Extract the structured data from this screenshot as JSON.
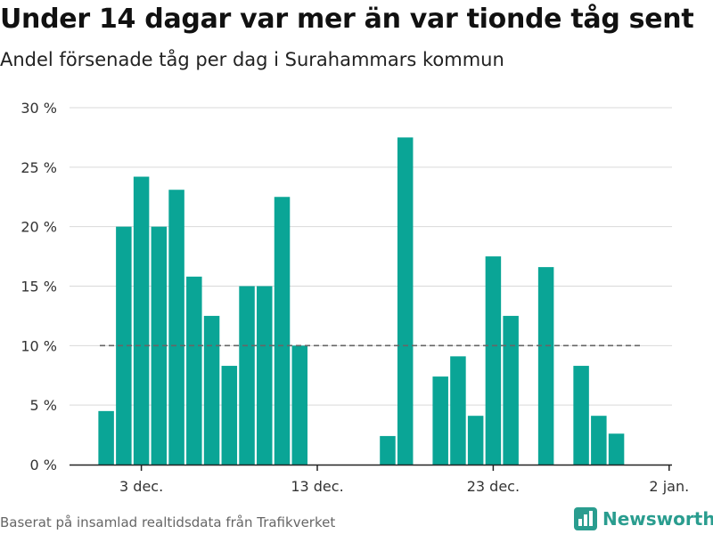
{
  "title": "Under 14 dagar var mer än var tionde tåg sent",
  "subtitle": "Andel försenade tåg per dag i Surahammars kommun",
  "source": "Baserat på insamlad realtidsdata från Trafikverket",
  "logo": {
    "text": "Newsworthy",
    "icon": "bar-chart-logo-icon"
  },
  "colors": {
    "bar": "#0aa596",
    "grid": "#d9d9d9",
    "reference": "#666666",
    "logo": "#2a9d8f"
  },
  "chart_data": {
    "type": "bar",
    "ylim": [
      0,
      30
    ],
    "yticks": [
      0,
      5,
      10,
      15,
      20,
      25,
      30
    ],
    "yticklabels": [
      "0 %",
      "5 %",
      "10 %",
      "15 %",
      "20 %",
      "25 %",
      "30 %"
    ],
    "xticks": [
      "2018-12-03",
      "2018-12-13",
      "2018-12-23",
      "2019-01-02"
    ],
    "xticklabels": [
      "3 dec.",
      "13 dec.",
      "23 dec.",
      "2 jan."
    ],
    "reference_line": 10,
    "grid": true,
    "data": [
      {
        "date": "2018-12-01",
        "value": 4.5
      },
      {
        "date": "2018-12-02",
        "value": 20.0
      },
      {
        "date": "2018-12-03",
        "value": 24.2
      },
      {
        "date": "2018-12-04",
        "value": 20.0
      },
      {
        "date": "2018-12-05",
        "value": 23.1
      },
      {
        "date": "2018-12-06",
        "value": 15.8
      },
      {
        "date": "2018-12-07",
        "value": 12.5
      },
      {
        "date": "2018-12-08",
        "value": 8.3
      },
      {
        "date": "2018-12-09",
        "value": 15.0
      },
      {
        "date": "2018-12-10",
        "value": 15.0
      },
      {
        "date": "2018-12-11",
        "value": 22.5
      },
      {
        "date": "2018-12-12",
        "value": 10.0
      },
      {
        "date": "2018-12-17",
        "value": 2.4
      },
      {
        "date": "2018-12-18",
        "value": 27.5
      },
      {
        "date": "2018-12-20",
        "value": 7.4
      },
      {
        "date": "2018-12-21",
        "value": 9.1
      },
      {
        "date": "2018-12-22",
        "value": 4.1
      },
      {
        "date": "2018-12-23",
        "value": 17.5
      },
      {
        "date": "2018-12-24",
        "value": 12.5
      },
      {
        "date": "2018-12-26",
        "value": 16.6
      },
      {
        "date": "2018-12-28",
        "value": 8.3
      },
      {
        "date": "2018-12-29",
        "value": 4.1
      },
      {
        "date": "2018-12-30",
        "value": 2.6
      }
    ]
  }
}
